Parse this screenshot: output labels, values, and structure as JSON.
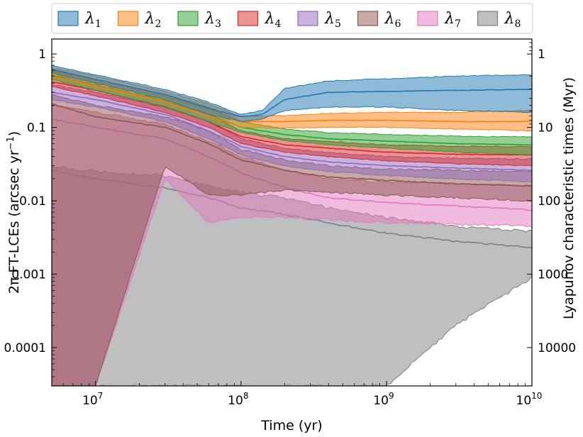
{
  "chart_data": {
    "type": "area",
    "xlabel": "Time (yr)",
    "ylabel": "2π FT-LCEs (arcsec yr",
    "ylabel_sup": "−1",
    "ylabel_close": ")",
    "y2label": "Lyapunov characteristic times (Myr)",
    "xscale": "log",
    "yscale": "log",
    "xlim": [
      5000000,
      10000000000
    ],
    "ylim": [
      3e-05,
      1.6
    ],
    "x_ticks": [
      {
        "value": 10000000,
        "base": "10",
        "exp": "7"
      },
      {
        "value": 100000000,
        "base": "10",
        "exp": "8"
      },
      {
        "value": 1000000000,
        "base": "10",
        "exp": "9"
      },
      {
        "value": 10000000000,
        "base": "10",
        "exp": "10"
      }
    ],
    "y_ticks": [
      {
        "value": 1,
        "label": "1"
      },
      {
        "value": 0.1,
        "label": "0.1"
      },
      {
        "value": 0.01,
        "label": "0.01"
      },
      {
        "value": 0.001,
        "label": "0.001"
      },
      {
        "value": 0.0001,
        "label": "0.0001"
      }
    ],
    "y2_ticks": [
      {
        "label": "1",
        "position_value": 1.0
      },
      {
        "label": "10",
        "position_value": 0.1
      },
      {
        "label": "100",
        "position_value": 0.01
      },
      {
        "label": "1000",
        "position_value": 0.001
      },
      {
        "label": "10000",
        "position_value": 0.0001
      }
    ],
    "legend_position": "top-center",
    "series": [
      {
        "name": "λ",
        "sub": "1",
        "fill": "#1f77b4",
        "line": "#1f77b4",
        "t": [
          5000000.0,
          10000000.0,
          30000000.0,
          60000000.0,
          100000000.0,
          140000000.0,
          200000000.0,
          400000000.0,
          1000000000.0,
          3000000000.0,
          10000000000.0
        ],
        "median": [
          0.62,
          0.45,
          0.28,
          0.18,
          0.14,
          0.15,
          0.24,
          0.3,
          0.31,
          0.32,
          0.33
        ],
        "lower": [
          0.55,
          0.4,
          0.24,
          0.15,
          0.12,
          0.13,
          0.17,
          0.19,
          0.19,
          0.17,
          0.16
        ],
        "upper": [
          0.7,
          0.52,
          0.33,
          0.22,
          0.15,
          0.17,
          0.34,
          0.43,
          0.46,
          0.5,
          0.52
        ]
      },
      {
        "name": "λ",
        "sub": "2",
        "fill": "#ff7f0e",
        "line": "#ff7f0e",
        "t": [
          5000000.0,
          10000000.0,
          30000000.0,
          60000000.0,
          100000000.0,
          200000000.0,
          400000000.0,
          1000000000.0,
          3000000000.0,
          10000000000.0
        ],
        "median": [
          0.58,
          0.42,
          0.26,
          0.17,
          0.12,
          0.12,
          0.125,
          0.125,
          0.12,
          0.12
        ],
        "lower": [
          0.5,
          0.36,
          0.22,
          0.14,
          0.1,
          0.098,
          0.1,
          0.1,
          0.095,
          0.09
        ],
        "upper": [
          0.66,
          0.5,
          0.31,
          0.21,
          0.14,
          0.145,
          0.155,
          0.16,
          0.16,
          0.17
        ]
      },
      {
        "name": "λ",
        "sub": "3",
        "fill": "#2ca02c",
        "line": "#2ca02c",
        "t": [
          5000000.0,
          10000000.0,
          30000000.0,
          60000000.0,
          100000000.0,
          200000000.0,
          400000000.0,
          1000000000.0,
          3000000000.0,
          10000000000.0
        ],
        "median": [
          0.52,
          0.38,
          0.23,
          0.15,
          0.1,
          0.08,
          0.07,
          0.065,
          0.06,
          0.058
        ],
        "lower": [
          0.45,
          0.32,
          0.19,
          0.12,
          0.085,
          0.066,
          0.058,
          0.052,
          0.046,
          0.042
        ],
        "upper": [
          0.6,
          0.45,
          0.28,
          0.19,
          0.12,
          0.095,
          0.085,
          0.08,
          0.076,
          0.074
        ]
      },
      {
        "name": "λ",
        "sub": "4",
        "fill": "#d62728",
        "line": "#d62728",
        "t": [
          5000000.0,
          10000000.0,
          30000000.0,
          60000000.0,
          100000000.0,
          200000000.0,
          400000000.0,
          1000000000.0,
          3000000000.0,
          10000000000.0
        ],
        "median": [
          0.42,
          0.32,
          0.19,
          0.12,
          0.075,
          0.058,
          0.052,
          0.046,
          0.043,
          0.042
        ],
        "lower": [
          0.36,
          0.27,
          0.16,
          0.1,
          0.06,
          0.046,
          0.04,
          0.035,
          0.032,
          0.03
        ],
        "upper": [
          0.5,
          0.38,
          0.23,
          0.15,
          0.09,
          0.07,
          0.064,
          0.058,
          0.055,
          0.055
        ]
      },
      {
        "name": "λ",
        "sub": "5",
        "fill": "#9467bd",
        "line": "#9467bd",
        "t": [
          5000000.0,
          10000000.0,
          30000000.0,
          60000000.0,
          100000000.0,
          200000000.0,
          400000000.0,
          1000000000.0,
          3000000000.0,
          10000000000.0
        ],
        "median": [
          0.3,
          0.24,
          0.15,
          0.09,
          0.055,
          0.04,
          0.034,
          0.03,
          0.028,
          0.026
        ],
        "lower": [
          0.24,
          0.19,
          0.12,
          0.07,
          0.042,
          0.03,
          0.025,
          0.022,
          0.02,
          0.018
        ],
        "upper": [
          0.38,
          0.3,
          0.19,
          0.12,
          0.07,
          0.052,
          0.045,
          0.04,
          0.038,
          0.037
        ]
      },
      {
        "name": "λ",
        "sub": "6",
        "fill": "#8c564b",
        "line": "#8c564b",
        "t": [
          5000000.0,
          10000000.0,
          30000000.0,
          60000000.0,
          100000000.0,
          200000000.0,
          400000000.0,
          1000000000.0,
          3000000000.0,
          10000000000.0
        ],
        "median": [
          0.21,
          0.14,
          0.1,
          0.06,
          0.036,
          0.026,
          0.021,
          0.019,
          0.017,
          0.016
        ],
        "lower": [
          3e-05,
          3e-05,
          0.03,
          0.012,
          0.012,
          0.014,
          0.013,
          0.012,
          0.011,
          0.01
        ],
        "upper": [
          0.28,
          0.2,
          0.14,
          0.09,
          0.05,
          0.036,
          0.03,
          0.027,
          0.026,
          0.025
        ]
      },
      {
        "name": "λ",
        "sub": "7",
        "fill": "#e377c2",
        "line": "#e377c2",
        "t": [
          5000000.0,
          10000000.0,
          30000000.0,
          60000000.0,
          100000000.0,
          200000000.0,
          400000000.0,
          1000000000.0,
          3000000000.0,
          10000000000.0
        ],
        "median": [
          0.13,
          0.1,
          0.07,
          0.04,
          0.024,
          0.015,
          0.011,
          0.0095,
          0.0085,
          0.0075
        ],
        "lower": [
          3e-05,
          3e-05,
          0.02,
          0.005,
          0.006,
          0.006,
          0.0055,
          0.005,
          0.0048,
          0.0045
        ],
        "upper": [
          0.2,
          0.16,
          0.11,
          0.065,
          0.04,
          0.026,
          0.02,
          0.018,
          0.017,
          0.016
        ]
      },
      {
        "name": "λ",
        "sub": "8",
        "fill": "#7f7f7f",
        "line": "#7f7f7f",
        "t": [
          5000000.0,
          10000000.0,
          30000000.0,
          60000000.0,
          100000000.0,
          200000000.0,
          400000000.0,
          1000000000.0,
          3000000000.0,
          10000000000.0
        ],
        "median": [
          0.026,
          0.02,
          0.015,
          0.011,
          0.008,
          0.0065,
          0.005,
          0.0036,
          0.0028,
          0.0023
        ],
        "lower": [
          3e-05,
          3e-05,
          3e-05,
          3e-05,
          3e-05,
          3e-05,
          3e-05,
          3e-05,
          0.0002,
          0.0009
        ],
        "upper": [
          0.03,
          0.025,
          0.022,
          0.016,
          0.013,
          0.011,
          0.008,
          0.006,
          0.0045,
          0.0038
        ]
      }
    ]
  }
}
